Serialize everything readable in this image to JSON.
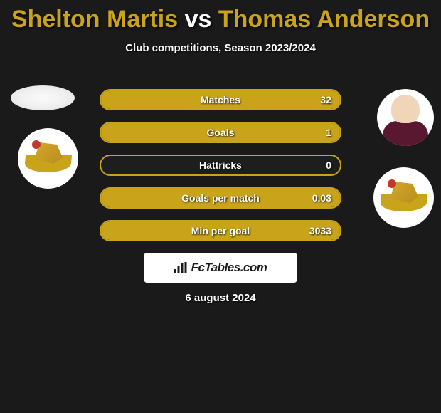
{
  "title": {
    "player1": "Shelton Martis",
    "vs": "vs",
    "player2": "Thomas Anderson",
    "player1_color": "#c9a319",
    "player2_color": "#c9a319",
    "vs_color": "#ffffff"
  },
  "subtitle": "Club competitions, Season 2023/2024",
  "stats": [
    {
      "label": "Matches",
      "value_left": "",
      "value_right": "32",
      "fill_side": "right",
      "fill_pct": 100
    },
    {
      "label": "Goals",
      "value_left": "",
      "value_right": "1",
      "fill_side": "right",
      "fill_pct": 100
    },
    {
      "label": "Hattricks",
      "value_left": "",
      "value_right": "0",
      "fill_side": "none",
      "fill_pct": 0
    },
    {
      "label": "Goals per match",
      "value_left": "",
      "value_right": "0.03",
      "fill_side": "right",
      "fill_pct": 100
    },
    {
      "label": "Min per goal",
      "value_left": "",
      "value_right": "3033",
      "fill_side": "right",
      "fill_pct": 100
    }
  ],
  "colors": {
    "accent": "#c9a319",
    "background": "#1a1a1a",
    "text": "#ffffff"
  },
  "branding": "FcTables.com",
  "date": "6 august 2024"
}
